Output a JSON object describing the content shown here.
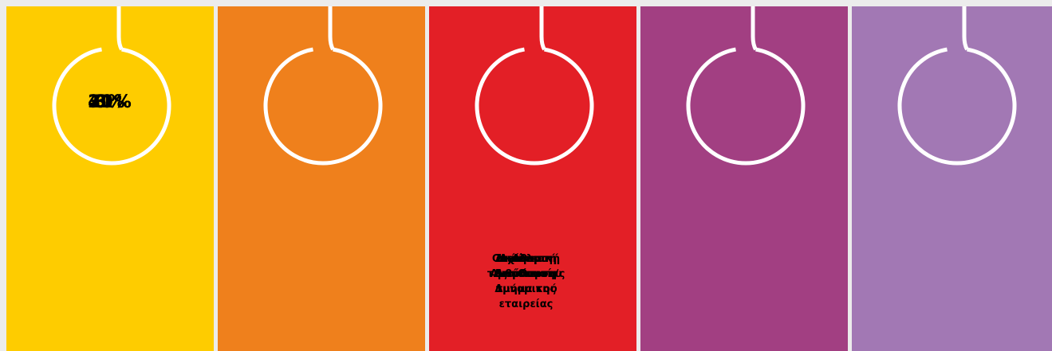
{
  "panels": [
    {
      "percent": "31%",
      "label": [
        "Διοίκηση",
        "της εταιρείας"
      ],
      "color": "#fecc00"
    },
    {
      "percent": "40%",
      "label": [
        "Ξεχωριστή",
        "Διεύθυνση/",
        "τμήμα της",
        "εταιρείας"
      ],
      "color": "#ef801c"
    },
    {
      "percent": "6%",
      "label": [
        "Διεύθυνση",
        "Ανθρώπινου",
        "Δυναμικού"
      ],
      "color": "#e31f26"
    },
    {
      "percent": "3%",
      "label": [
        "Οικονομική",
        "Διεύθυνση"
      ],
      "color": "#a23f82"
    },
    {
      "percent": "20%",
      "label": [
        "Άλλο"
      ],
      "color": "#a278b4"
    }
  ]
}
